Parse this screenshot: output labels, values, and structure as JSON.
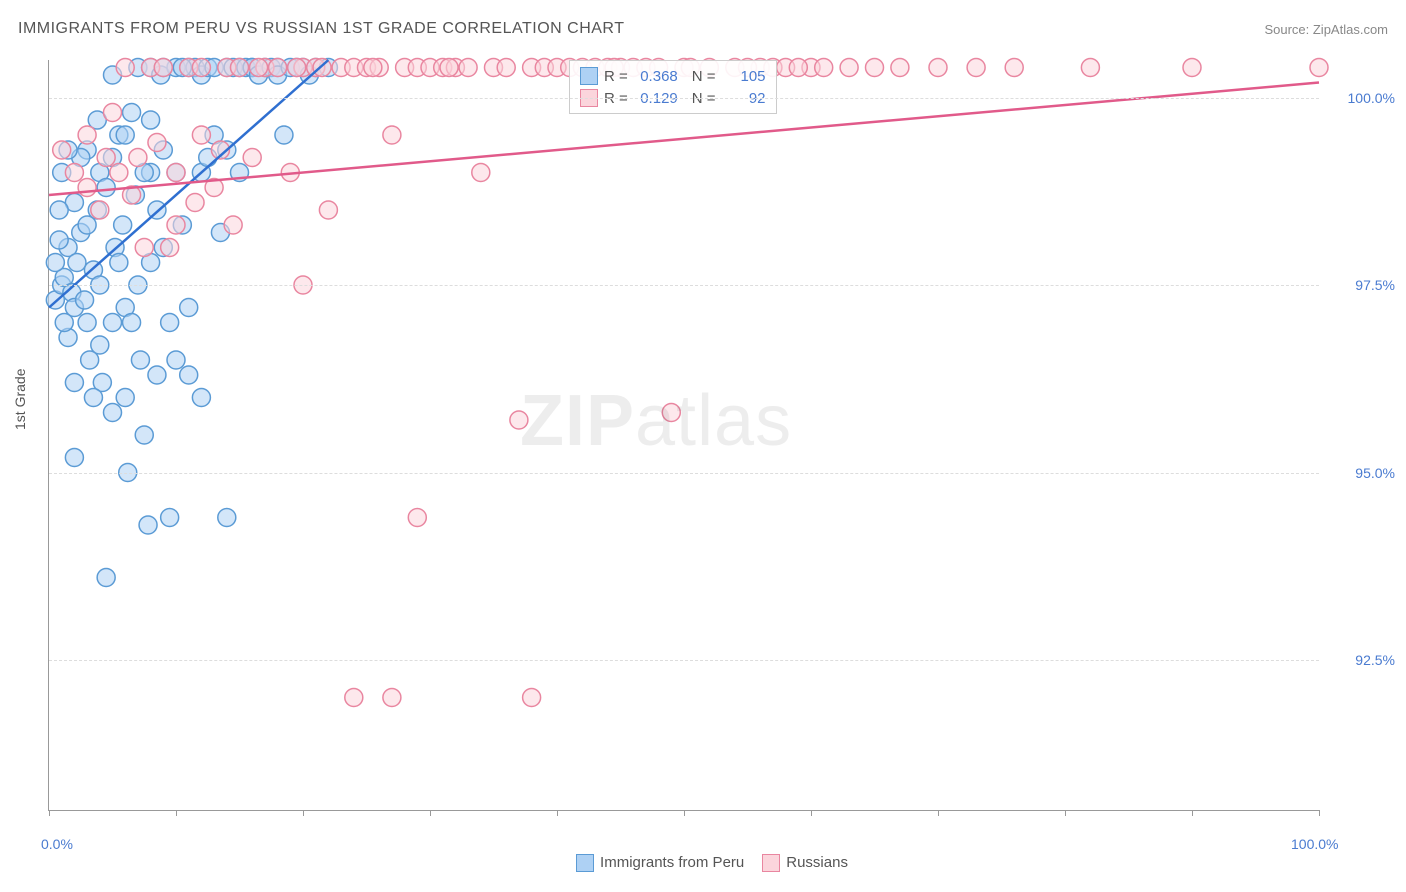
{
  "title": "IMMIGRANTS FROM PERU VS RUSSIAN 1ST GRADE CORRELATION CHART",
  "source_label": "Source: ZipAtlas.com",
  "ylabel": "1st Grade",
  "watermark": {
    "bold": "ZIP",
    "rest": "atlas"
  },
  "chart": {
    "type": "scatter",
    "background_color": "#ffffff",
    "grid_color": "#dddddd",
    "axis_color": "#999999",
    "xlim": [
      0,
      100
    ],
    "ylim": [
      90.5,
      100.5
    ],
    "x_ticks": [
      0,
      10,
      20,
      30,
      40,
      50,
      60,
      70,
      80,
      90,
      100
    ],
    "x_tick_labels": {
      "0": "0.0%",
      "100": "100.0%"
    },
    "y_ticks": [
      92.5,
      95.0,
      97.5,
      100.0
    ],
    "y_tick_labels": [
      "92.5%",
      "95.0%",
      "97.5%",
      "100.0%"
    ],
    "marker_radius": 9,
    "marker_stroke_width": 1.5,
    "trend_line_width": 2.5,
    "label_fontsize": 14,
    "label_color": "#4a7bd0",
    "legend_border": "#cccccc",
    "series": [
      {
        "name": "Immigrants from Peru",
        "fill": "#aed1f4",
        "stroke": "#5b9bd5",
        "trend_color": "#2f6fd0",
        "R": "0.368",
        "N": "105",
        "trend": {
          "x1": 0,
          "y1": 97.2,
          "x2": 22,
          "y2": 100.5
        },
        "points": [
          [
            0.5,
            97.3
          ],
          [
            1,
            97.5
          ],
          [
            1.2,
            97.6
          ],
          [
            1.5,
            98.0
          ],
          [
            1.8,
            97.4
          ],
          [
            2,
            97.2
          ],
          [
            2.2,
            97.8
          ],
          [
            2.5,
            98.2
          ],
          [
            3,
            98.3
          ],
          [
            3,
            97.0
          ],
          [
            3.2,
            96.5
          ],
          [
            3.5,
            97.7
          ],
          [
            3.8,
            98.5
          ],
          [
            4,
            99.0
          ],
          [
            4,
            97.5
          ],
          [
            4.2,
            96.2
          ],
          [
            4.5,
            98.8
          ],
          [
            5,
            99.2
          ],
          [
            5,
            97.0
          ],
          [
            5,
            95.8
          ],
          [
            5.2,
            98.0
          ],
          [
            5.5,
            99.5
          ],
          [
            5.8,
            98.3
          ],
          [
            6,
            97.2
          ],
          [
            6,
            96.0
          ],
          [
            6.2,
            95.0
          ],
          [
            6.5,
            99.8
          ],
          [
            6.8,
            98.7
          ],
          [
            7,
            100.4
          ],
          [
            7,
            97.5
          ],
          [
            7.2,
            96.5
          ],
          [
            7.5,
            95.5
          ],
          [
            7.8,
            94.3
          ],
          [
            8,
            100.4
          ],
          [
            8,
            99.0
          ],
          [
            8,
            97.8
          ],
          [
            8.5,
            96.3
          ],
          [
            8.8,
            100.3
          ],
          [
            9,
            99.3
          ],
          [
            9,
            98.0
          ],
          [
            9.5,
            97.0
          ],
          [
            9.5,
            94.4
          ],
          [
            10,
            100.4
          ],
          [
            10,
            99.0
          ],
          [
            10,
            96.5
          ],
          [
            10.5,
            98.3
          ],
          [
            11,
            100.4
          ],
          [
            11,
            97.2
          ],
          [
            11,
            96.3
          ],
          [
            11.5,
            100.4
          ],
          [
            12,
            100.3
          ],
          [
            12,
            99.0
          ],
          [
            12,
            96.0
          ],
          [
            12.5,
            100.4
          ],
          [
            13,
            100.4
          ],
          [
            13,
            99.5
          ],
          [
            13.5,
            98.2
          ],
          [
            14,
            100.4
          ],
          [
            14,
            94.4
          ],
          [
            14.5,
            100.4
          ],
          [
            15,
            100.4
          ],
          [
            15,
            99.0
          ],
          [
            15.5,
            100.4
          ],
          [
            16,
            100.4
          ],
          [
            16,
            100.4
          ],
          [
            16.5,
            100.3
          ],
          [
            17,
            100.4
          ],
          [
            17.5,
            100.4
          ],
          [
            18,
            100.4
          ],
          [
            18,
            100.3
          ],
          [
            18.5,
            99.5
          ],
          [
            19,
            100.4
          ],
          [
            19.5,
            100.4
          ],
          [
            20,
            100.4
          ],
          [
            20.5,
            100.3
          ],
          [
            21,
            100.4
          ],
          [
            22,
            100.4
          ],
          [
            4.5,
            93.6
          ],
          [
            2,
            98.6
          ],
          [
            3,
            99.3
          ],
          [
            1,
            99.0
          ],
          [
            0.8,
            98.5
          ],
          [
            2.5,
            99.2
          ],
          [
            1.5,
            96.8
          ],
          [
            6,
            99.5
          ],
          [
            4,
            96.7
          ],
          [
            3.5,
            96.0
          ],
          [
            7.5,
            99.0
          ],
          [
            8.5,
            98.5
          ],
          [
            2,
            96.2
          ],
          [
            1.5,
            99.3
          ],
          [
            0.5,
            97.8
          ],
          [
            0.8,
            98.1
          ],
          [
            1.2,
            97.0
          ],
          [
            2.8,
            97.3
          ],
          [
            3.8,
            99.7
          ],
          [
            5.5,
            97.8
          ],
          [
            6.5,
            97.0
          ],
          [
            9,
            100.4
          ],
          [
            10.5,
            100.4
          ],
          [
            8,
            99.7
          ],
          [
            5,
            100.3
          ],
          [
            12.5,
            99.2
          ],
          [
            14,
            99.3
          ],
          [
            2,
            95.2
          ]
        ]
      },
      {
        "name": "Russians",
        "fill": "#fbd5dc",
        "stroke": "#e986a0",
        "trend_color": "#e15a8a",
        "R": "0.129",
        "N": "92",
        "trend": {
          "x1": 0,
          "y1": 98.7,
          "x2": 100,
          "y2": 100.2
        },
        "points": [
          [
            1,
            99.3
          ],
          [
            2,
            99.0
          ],
          [
            3,
            99.5
          ],
          [
            4,
            98.5
          ],
          [
            5,
            99.8
          ],
          [
            5.5,
            99.0
          ],
          [
            6,
            100.4
          ],
          [
            7,
            99.2
          ],
          [
            7.5,
            98.0
          ],
          [
            8,
            100.4
          ],
          [
            8.5,
            99.4
          ],
          [
            9,
            100.4
          ],
          [
            10,
            99.0
          ],
          [
            10,
            98.3
          ],
          [
            11,
            100.4
          ],
          [
            12,
            100.4
          ],
          [
            12,
            99.5
          ],
          [
            13,
            98.8
          ],
          [
            14,
            100.4
          ],
          [
            14.5,
            98.3
          ],
          [
            15,
            100.4
          ],
          [
            16,
            99.2
          ],
          [
            17,
            100.4
          ],
          [
            18,
            100.4
          ],
          [
            19,
            99.0
          ],
          [
            20,
            100.4
          ],
          [
            20,
            97.5
          ],
          [
            21,
            100.4
          ],
          [
            22,
            98.5
          ],
          [
            23,
            100.4
          ],
          [
            24,
            100.4
          ],
          [
            24,
            92.0
          ],
          [
            25,
            100.4
          ],
          [
            26,
            100.4
          ],
          [
            27,
            99.5
          ],
          [
            27,
            92.0
          ],
          [
            28,
            100.4
          ],
          [
            29,
            100.4
          ],
          [
            29,
            94.4
          ],
          [
            30,
            100.4
          ],
          [
            31,
            100.4
          ],
          [
            32,
            100.4
          ],
          [
            33,
            100.4
          ],
          [
            34,
            99.0
          ],
          [
            35,
            100.4
          ],
          [
            36,
            100.4
          ],
          [
            37,
            95.7
          ],
          [
            38,
            100.4
          ],
          [
            38,
            92.0
          ],
          [
            39,
            100.4
          ],
          [
            40,
            100.4
          ],
          [
            41,
            100.4
          ],
          [
            42,
            100.4
          ],
          [
            43,
            100.4
          ],
          [
            44,
            100.4
          ],
          [
            45,
            100.4
          ],
          [
            46,
            100.4
          ],
          [
            47,
            100.4
          ],
          [
            48,
            100.4
          ],
          [
            49,
            95.8
          ],
          [
            50,
            100.4
          ],
          [
            52,
            100.4
          ],
          [
            54,
            100.4
          ],
          [
            56,
            100.4
          ],
          [
            57,
            100.4
          ],
          [
            58,
            100.4
          ],
          [
            60,
            100.4
          ],
          [
            61,
            100.4
          ],
          [
            63,
            100.4
          ],
          [
            65,
            100.4
          ],
          [
            67,
            100.4
          ],
          [
            70,
            100.4
          ],
          [
            73,
            100.4
          ],
          [
            76,
            100.4
          ],
          [
            82,
            100.4
          ],
          [
            90,
            100.4
          ],
          [
            100,
            100.4
          ],
          [
            3,
            98.8
          ],
          [
            4.5,
            99.2
          ],
          [
            6.5,
            98.7
          ],
          [
            9.5,
            98.0
          ],
          [
            11.5,
            98.6
          ],
          [
            13.5,
            99.3
          ],
          [
            16.5,
            100.4
          ],
          [
            19.5,
            100.4
          ],
          [
            21.5,
            100.4
          ],
          [
            25.5,
            100.4
          ],
          [
            31.5,
            100.4
          ],
          [
            44.5,
            100.4
          ],
          [
            50.5,
            100.4
          ],
          [
            55,
            100.4
          ],
          [
            59,
            100.4
          ]
        ]
      }
    ]
  },
  "legend_labels": {
    "R": "R =",
    "N": "N ="
  }
}
